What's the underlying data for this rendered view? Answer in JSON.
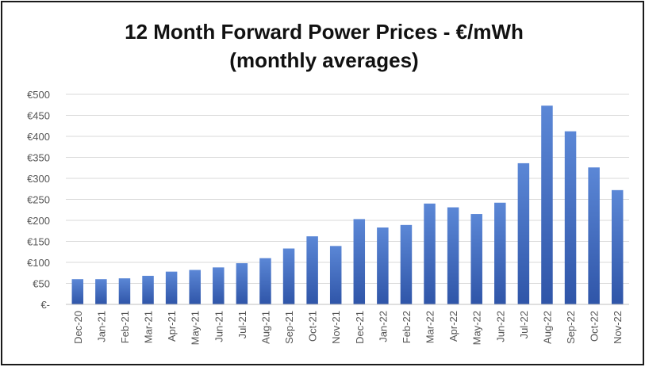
{
  "chart_data": {
    "type": "bar",
    "title_line1": "12 Month Forward Power Prices - €/mWh",
    "title_line2": "(monthly averages)",
    "xlabel": "",
    "ylabel": "",
    "ylim": [
      0,
      500
    ],
    "yticks": [
      0,
      50,
      100,
      150,
      200,
      250,
      300,
      350,
      400,
      450,
      500
    ],
    "ytick_labels": [
      "€-",
      "€50",
      "€100",
      "€150",
      "€200",
      "€250",
      "€300",
      "€350",
      "€400",
      "€450",
      "€500"
    ],
    "grid": true,
    "legend": "none",
    "bar_color_top": "#5b87d6",
    "bar_color_bottom": "#2f55a8",
    "categories": [
      "Dec-20",
      "Jan-21",
      "Feb-21",
      "Mar-21",
      "Apr-21",
      "May-21",
      "Jun-21",
      "Jul-21",
      "Aug-21",
      "Sep-21",
      "Oct-21",
      "Nov-21",
      "Dec-21",
      "Jan-22",
      "Feb-22",
      "Mar-22",
      "Apr-22",
      "May-22",
      "Jun-22",
      "Jul-22",
      "Aug-22",
      "Sep-22",
      "Oct-22",
      "Nov-22"
    ],
    "values": [
      60,
      60,
      62,
      68,
      78,
      82,
      88,
      98,
      110,
      133,
      162,
      139,
      203,
      183,
      189,
      240,
      231,
      215,
      242,
      336,
      473,
      412,
      326,
      272
    ]
  }
}
